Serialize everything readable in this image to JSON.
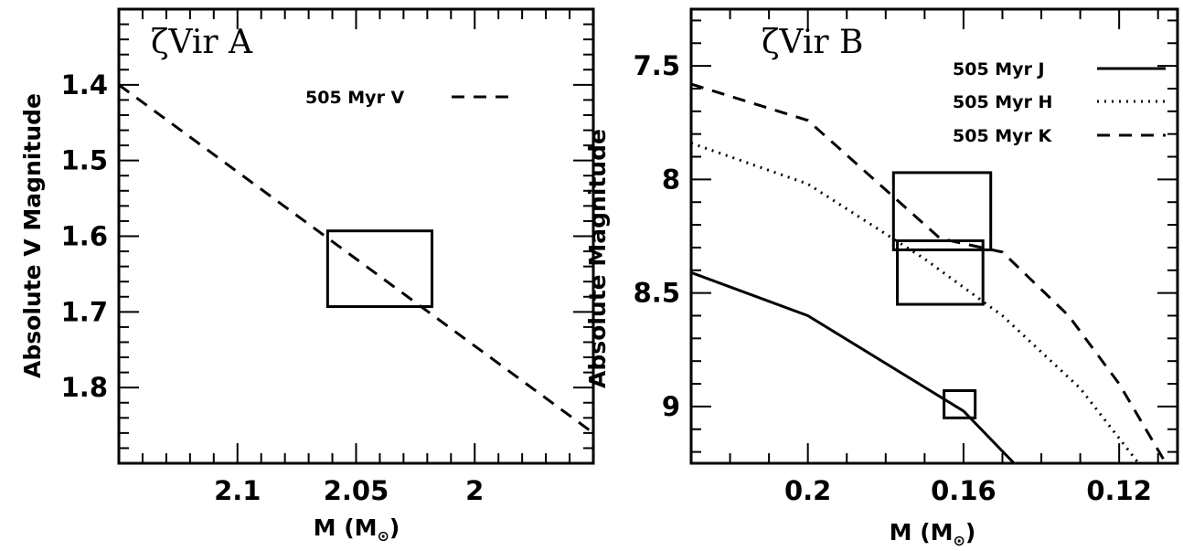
{
  "chart_data": [
    {
      "type": "line",
      "title": "ζVir A",
      "xlabel": "M (M",
      "xlabel_sub": "⊙",
      "xlabel_close": ")",
      "ylabel": "Absolute V Magnitude",
      "xlim": [
        2.15,
        1.95
      ],
      "ylim": [
        1.3,
        1.9
      ],
      "y_inverted": true,
      "x_ticks": [
        2.1,
        2.05,
        2.0
      ],
      "x_tick_labels": [
        "2.1",
        "2.05",
        "2"
      ],
      "y_ticks": [
        1.4,
        1.5,
        1.6,
        1.7,
        1.8
      ],
      "y_tick_labels": [
        "1.4",
        "1.5",
        "1.6",
        "1.7",
        "1.8"
      ],
      "legend_position": "top-right",
      "series": [
        {
          "name": "505 Myr V",
          "style": "dashed",
          "x": [
            2.15,
            1.95
          ],
          "y": [
            1.4,
            1.86
          ]
        }
      ],
      "boxes": [
        {
          "x": [
            2.062,
            2.018
          ],
          "y": [
            1.593,
            1.693
          ]
        }
      ]
    },
    {
      "type": "line",
      "title": "ζVir B",
      "xlabel": "M (M",
      "xlabel_sub": "⊙",
      "xlabel_close": ")",
      "ylabel": "Absolute Magnitude",
      "xlim": [
        0.23,
        0.105
      ],
      "ylim": [
        7.25,
        9.25
      ],
      "y_inverted": true,
      "x_ticks": [
        0.2,
        0.16,
        0.12
      ],
      "x_tick_labels": [
        "0.2",
        "0.16",
        "0.12"
      ],
      "y_ticks": [
        7.5,
        8.0,
        8.5,
        9.0
      ],
      "y_tick_labels": [
        "7.5",
        "8",
        "8.5",
        "9"
      ],
      "legend_position": "top-right",
      "series": [
        {
          "name": "505 Myr J",
          "style": "solid",
          "x": [
            0.23,
            0.2,
            0.16,
            0.147
          ],
          "y": [
            8.41,
            8.6,
            9.02,
            9.25
          ]
        },
        {
          "name": "505 Myr H",
          "style": "dotted",
          "x": [
            0.23,
            0.2,
            0.17,
            0.15,
            0.13,
            0.115
          ],
          "y": [
            7.84,
            8.02,
            8.35,
            8.6,
            8.92,
            9.25
          ]
        },
        {
          "name": "505 Myr K",
          "style": "dashed",
          "x": [
            0.23,
            0.2,
            0.166,
            0.15,
            0.133,
            0.12,
            0.108
          ],
          "y": [
            7.58,
            7.74,
            8.26,
            8.32,
            8.6,
            8.9,
            9.25
          ]
        }
      ],
      "boxes": [
        {
          "x": [
            0.178,
            0.153
          ],
          "y": [
            7.97,
            8.31
          ]
        },
        {
          "x": [
            0.177,
            0.155
          ],
          "y": [
            8.27,
            8.55
          ]
        },
        {
          "x": [
            0.165,
            0.157
          ],
          "y": [
            8.93,
            9.05
          ]
        }
      ]
    }
  ]
}
